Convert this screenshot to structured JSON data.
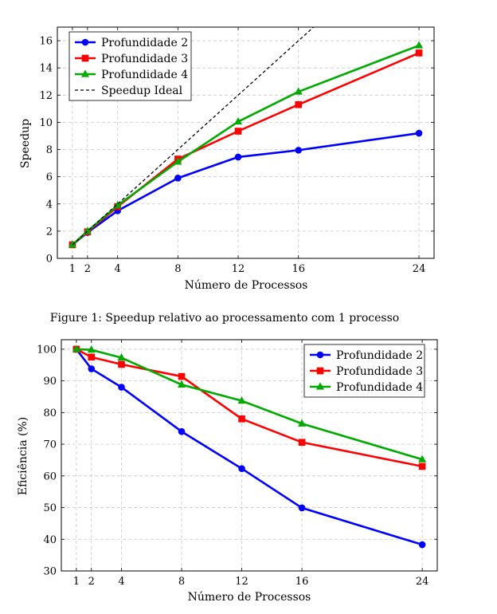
{
  "chart_data": [
    {
      "type": "line",
      "ylabel": "Speedup",
      "xlabel": "Número de Processos",
      "x": [
        1,
        2,
        4,
        8,
        12,
        16,
        24
      ],
      "xlim": [
        0,
        25
      ],
      "ylim": [
        0,
        17
      ],
      "yticks": [
        0,
        2,
        4,
        6,
        8,
        10,
        12,
        14,
        16
      ],
      "grid": true,
      "legend_position": "top-left",
      "series": [
        {
          "name": "Profundidade 2",
          "color": "#0000ff",
          "marker": "circle",
          "values": [
            1.0,
            1.9,
            3.5,
            5.9,
            7.45,
            7.95,
            9.2
          ]
        },
        {
          "name": "Profundidade 3",
          "color": "#ff0000",
          "marker": "square",
          "values": [
            1.0,
            1.95,
            3.8,
            7.3,
            9.35,
            11.3,
            15.1
          ]
        },
        {
          "name": "Profundidade 4",
          "color": "#00aa00",
          "marker": "triangle",
          "values": [
            1.0,
            2.0,
            3.9,
            7.1,
            10.05,
            12.25,
            15.65
          ]
        },
        {
          "name": "Speedup Ideal",
          "color": "#000000",
          "marker": "none",
          "dashed": true,
          "values": [
            1,
            2,
            4,
            8,
            12,
            16,
            24
          ]
        }
      ],
      "caption": "Figure 1: Speedup relativo ao processamento com 1 processo"
    },
    {
      "type": "line",
      "ylabel": "Eficiência (%)",
      "xlabel": "Número de Processos",
      "x": [
        1,
        2,
        4,
        8,
        12,
        16,
        24
      ],
      "xlim": [
        0,
        25
      ],
      "ylim": [
        30,
        103
      ],
      "yticks": [
        30,
        40,
        50,
        60,
        70,
        80,
        90,
        100
      ],
      "grid": true,
      "legend_position": "top-right",
      "series": [
        {
          "name": "Profundidade 2",
          "color": "#0000ff",
          "marker": "circle",
          "values": [
            100,
            93.8,
            88.0,
            74.0,
            62.3,
            49.9,
            38.3
          ]
        },
        {
          "name": "Profundidade 3",
          "color": "#ff0000",
          "marker": "square",
          "values": [
            100,
            97.5,
            95.2,
            91.4,
            78.0,
            70.6,
            63.0
          ]
        },
        {
          "name": "Profundidade 4",
          "color": "#00aa00",
          "marker": "triangle",
          "values": [
            100,
            99.8,
            97.3,
            88.8,
            83.7,
            76.5,
            65.2
          ]
        }
      ]
    }
  ]
}
